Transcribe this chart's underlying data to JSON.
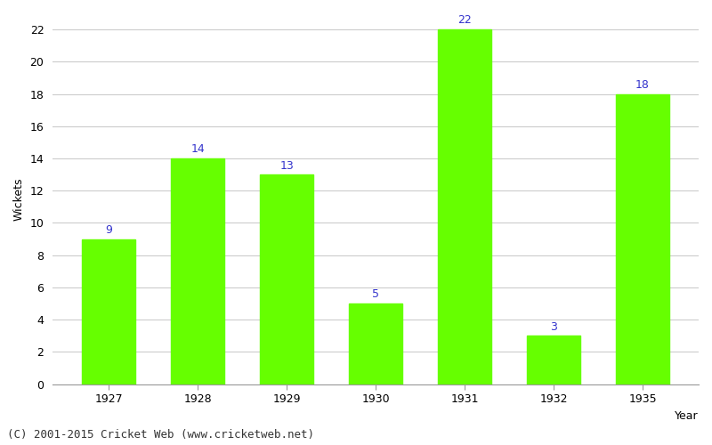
{
  "categories": [
    "1927",
    "1928",
    "1929",
    "1930",
    "1931",
    "1932",
    "1935"
  ],
  "values": [
    9,
    14,
    13,
    5,
    22,
    3,
    18
  ],
  "bar_color": "#66ff00",
  "bar_edge_color": "#66ff00",
  "ylabel": "Wickets",
  "ylim": [
    0,
    23
  ],
  "yticks": [
    0,
    2,
    4,
    6,
    8,
    10,
    12,
    14,
    16,
    18,
    20,
    22
  ],
  "label_color": "#3333cc",
  "label_fontsize": 9,
  "axis_label_fontsize": 9,
  "tick_fontsize": 9,
  "background_color": "#ffffff",
  "grid_color": "#cccccc",
  "footer": "(C) 2001-2015 Cricket Web (www.cricketweb.net)",
  "footer_fontsize": 9
}
